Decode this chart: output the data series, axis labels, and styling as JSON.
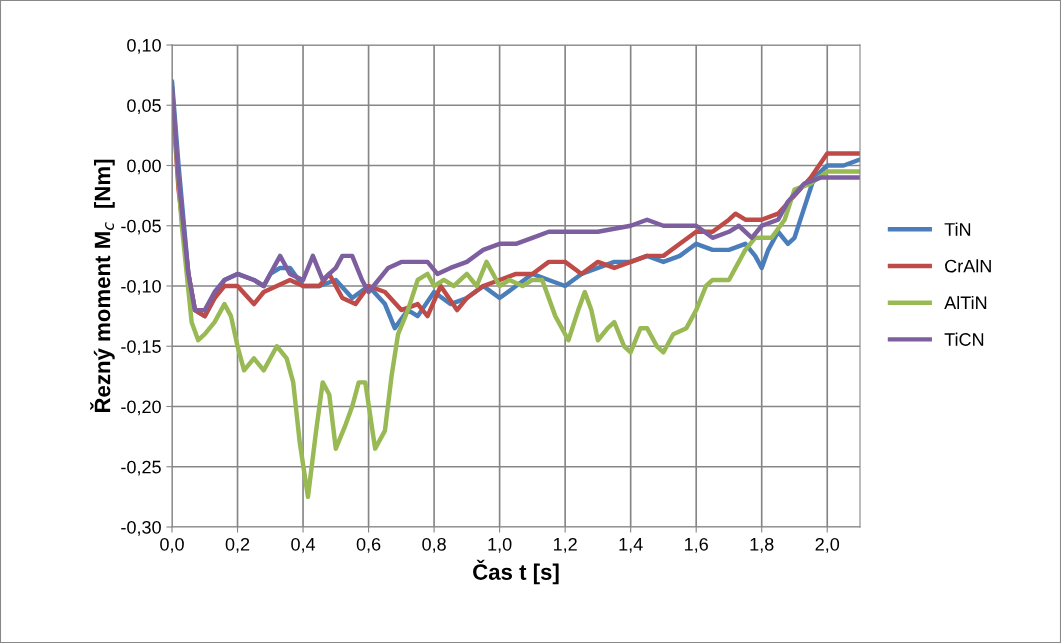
{
  "chart_data": {
    "type": "line",
    "xlabel": "Čas t [s]",
    "ylabel": "Řezný moment M$_{c}$  [Nm]",
    "xlim": [
      0,
      2.1
    ],
    "ylim": [
      -0.3,
      0.1
    ],
    "xticks": [
      {
        "value": 0,
        "label": "0,0"
      },
      {
        "value": 0.2,
        "label": "0,2"
      },
      {
        "value": 0.4,
        "label": "0,4"
      },
      {
        "value": 0.6,
        "label": "0,6"
      },
      {
        "value": 0.8,
        "label": "0,8"
      },
      {
        "value": 1.0,
        "label": "1,0"
      },
      {
        "value": 1.2,
        "label": "1,2"
      },
      {
        "value": 1.4,
        "label": "1,4"
      },
      {
        "value": 1.6,
        "label": "1,6"
      },
      {
        "value": 1.8,
        "label": "1,8"
      },
      {
        "value": 2.0,
        "label": "2,0"
      }
    ],
    "yticks": [
      {
        "value": -0.3,
        "label": "-0,30"
      },
      {
        "value": -0.25,
        "label": "-0,25"
      },
      {
        "value": -0.2,
        "label": "-0,20"
      },
      {
        "value": -0.15,
        "label": "-0,15"
      },
      {
        "value": -0.1,
        "label": "-0,10"
      },
      {
        "value": -0.05,
        "label": "-0,05"
      },
      {
        "value": 0,
        "label": "0,00"
      },
      {
        "value": 0.05,
        "label": "0,05"
      },
      {
        "value": 0.1,
        "label": "0,10"
      }
    ],
    "grid": true,
    "legend": "right",
    "marker": "none",
    "line_style": "solid",
    "series": [
      {
        "name": "TiN",
        "color": "#4a7ebb",
        "x": [
          0,
          0.02,
          0.05,
          0.07,
          0.1,
          0.13,
          0.16,
          0.2,
          0.25,
          0.28,
          0.3,
          0.33,
          0.36,
          0.4,
          0.45,
          0.5,
          0.55,
          0.6,
          0.65,
          0.68,
          0.72,
          0.75,
          0.8,
          0.85,
          0.9,
          0.95,
          1.0,
          1.05,
          1.1,
          1.15,
          1.2,
          1.25,
          1.3,
          1.35,
          1.4,
          1.45,
          1.5,
          1.55,
          1.6,
          1.65,
          1.7,
          1.75,
          1.78,
          1.8,
          1.82,
          1.85,
          1.88,
          1.9,
          1.93,
          1.96,
          2.0,
          2.05,
          2.1
        ],
        "values": [
          0.07,
          0.0,
          -0.09,
          -0.12,
          -0.125,
          -0.11,
          -0.095,
          -0.09,
          -0.095,
          -0.1,
          -0.09,
          -0.085,
          -0.085,
          -0.1,
          -0.1,
          -0.095,
          -0.11,
          -0.1,
          -0.115,
          -0.135,
          -0.12,
          -0.125,
          -0.105,
          -0.115,
          -0.11,
          -0.1,
          -0.11,
          -0.1,
          -0.09,
          -0.095,
          -0.1,
          -0.09,
          -0.085,
          -0.08,
          -0.08,
          -0.075,
          -0.08,
          -0.075,
          -0.065,
          -0.07,
          -0.07,
          -0.065,
          -0.075,
          -0.085,
          -0.07,
          -0.055,
          -0.065,
          -0.06,
          -0.035,
          -0.01,
          0.0,
          0.0,
          0.005
        ]
      },
      {
        "name": "CrAlN",
        "color": "#be4b48",
        "x": [
          0,
          0.02,
          0.05,
          0.07,
          0.1,
          0.13,
          0.16,
          0.2,
          0.25,
          0.28,
          0.32,
          0.36,
          0.4,
          0.45,
          0.48,
          0.52,
          0.56,
          0.6,
          0.65,
          0.7,
          0.75,
          0.78,
          0.82,
          0.87,
          0.9,
          0.95,
          1.0,
          1.05,
          1.1,
          1.15,
          1.2,
          1.25,
          1.3,
          1.35,
          1.4,
          1.45,
          1.5,
          1.55,
          1.6,
          1.65,
          1.7,
          1.72,
          1.75,
          1.8,
          1.85,
          1.9,
          1.95,
          2.0,
          2.05,
          2.1
        ],
        "values": [
          0.06,
          -0.02,
          -0.09,
          -0.12,
          -0.125,
          -0.11,
          -0.1,
          -0.1,
          -0.115,
          -0.105,
          -0.1,
          -0.095,
          -0.1,
          -0.1,
          -0.09,
          -0.11,
          -0.115,
          -0.1,
          -0.105,
          -0.12,
          -0.115,
          -0.125,
          -0.1,
          -0.12,
          -0.11,
          -0.1,
          -0.095,
          -0.09,
          -0.09,
          -0.08,
          -0.08,
          -0.09,
          -0.08,
          -0.085,
          -0.08,
          -0.075,
          -0.075,
          -0.065,
          -0.055,
          -0.055,
          -0.045,
          -0.04,
          -0.045,
          -0.045,
          -0.04,
          -0.025,
          -0.01,
          0.01,
          0.01,
          0.01
        ]
      },
      {
        "name": "AlTiN",
        "color": "#98b954",
        "x": [
          0,
          0.03,
          0.06,
          0.08,
          0.1,
          0.13,
          0.16,
          0.18,
          0.2,
          0.22,
          0.25,
          0.28,
          0.32,
          0.35,
          0.37,
          0.39,
          0.415,
          0.44,
          0.46,
          0.48,
          0.5,
          0.53,
          0.55,
          0.57,
          0.59,
          0.62,
          0.65,
          0.67,
          0.69,
          0.72,
          0.75,
          0.78,
          0.8,
          0.83,
          0.86,
          0.9,
          0.93,
          0.96,
          1.0,
          1.03,
          1.07,
          1.1,
          1.13,
          1.17,
          1.21,
          1.24,
          1.26,
          1.28,
          1.3,
          1.33,
          1.35,
          1.38,
          1.4,
          1.43,
          1.45,
          1.48,
          1.5,
          1.53,
          1.57,
          1.6,
          1.63,
          1.65,
          1.7,
          1.72,
          1.75,
          1.78,
          1.83,
          1.87,
          1.9,
          1.95,
          2.0,
          2.05,
          2.1
        ],
        "values": [
          0.06,
          -0.05,
          -0.13,
          -0.145,
          -0.14,
          -0.13,
          -0.115,
          -0.125,
          -0.15,
          -0.17,
          -0.16,
          -0.17,
          -0.15,
          -0.16,
          -0.18,
          -0.23,
          -0.275,
          -0.22,
          -0.18,
          -0.19,
          -0.235,
          -0.215,
          -0.2,
          -0.18,
          -0.18,
          -0.235,
          -0.22,
          -0.175,
          -0.14,
          -0.12,
          -0.095,
          -0.09,
          -0.1,
          -0.095,
          -0.1,
          -0.09,
          -0.1,
          -0.08,
          -0.1,
          -0.095,
          -0.1,
          -0.095,
          -0.095,
          -0.125,
          -0.145,
          -0.12,
          -0.105,
          -0.12,
          -0.145,
          -0.135,
          -0.13,
          -0.15,
          -0.155,
          -0.135,
          -0.135,
          -0.15,
          -0.155,
          -0.14,
          -0.135,
          -0.12,
          -0.1,
          -0.095,
          -0.095,
          -0.085,
          -0.07,
          -0.06,
          -0.06,
          -0.045,
          -0.02,
          -0.015,
          -0.005,
          -0.005,
          -0.005
        ]
      },
      {
        "name": "TiCN",
        "color": "#7d5fa0",
        "x": [
          0,
          0.02,
          0.05,
          0.07,
          0.1,
          0.13,
          0.16,
          0.2,
          0.25,
          0.28,
          0.31,
          0.33,
          0.36,
          0.4,
          0.43,
          0.46,
          0.5,
          0.52,
          0.55,
          0.58,
          0.6,
          0.63,
          0.66,
          0.7,
          0.75,
          0.78,
          0.81,
          0.85,
          0.9,
          0.95,
          1.0,
          1.05,
          1.1,
          1.15,
          1.25,
          1.3,
          1.4,
          1.45,
          1.5,
          1.55,
          1.6,
          1.65,
          1.7,
          1.73,
          1.77,
          1.8,
          1.85,
          1.88,
          1.93,
          1.98,
          2.0,
          2.1
        ],
        "values": [
          0.065,
          -0.01,
          -0.09,
          -0.12,
          -0.12,
          -0.105,
          -0.095,
          -0.09,
          -0.095,
          -0.1,
          -0.085,
          -0.075,
          -0.09,
          -0.095,
          -0.075,
          -0.095,
          -0.085,
          -0.075,
          -0.075,
          -0.095,
          -0.105,
          -0.095,
          -0.085,
          -0.08,
          -0.08,
          -0.08,
          -0.09,
          -0.085,
          -0.08,
          -0.07,
          -0.065,
          -0.065,
          -0.06,
          -0.055,
          -0.055,
          -0.055,
          -0.05,
          -0.045,
          -0.05,
          -0.05,
          -0.05,
          -0.06,
          -0.055,
          -0.05,
          -0.06,
          -0.05,
          -0.045,
          -0.03,
          -0.015,
          -0.01,
          -0.01,
          -0.01
        ]
      }
    ]
  }
}
